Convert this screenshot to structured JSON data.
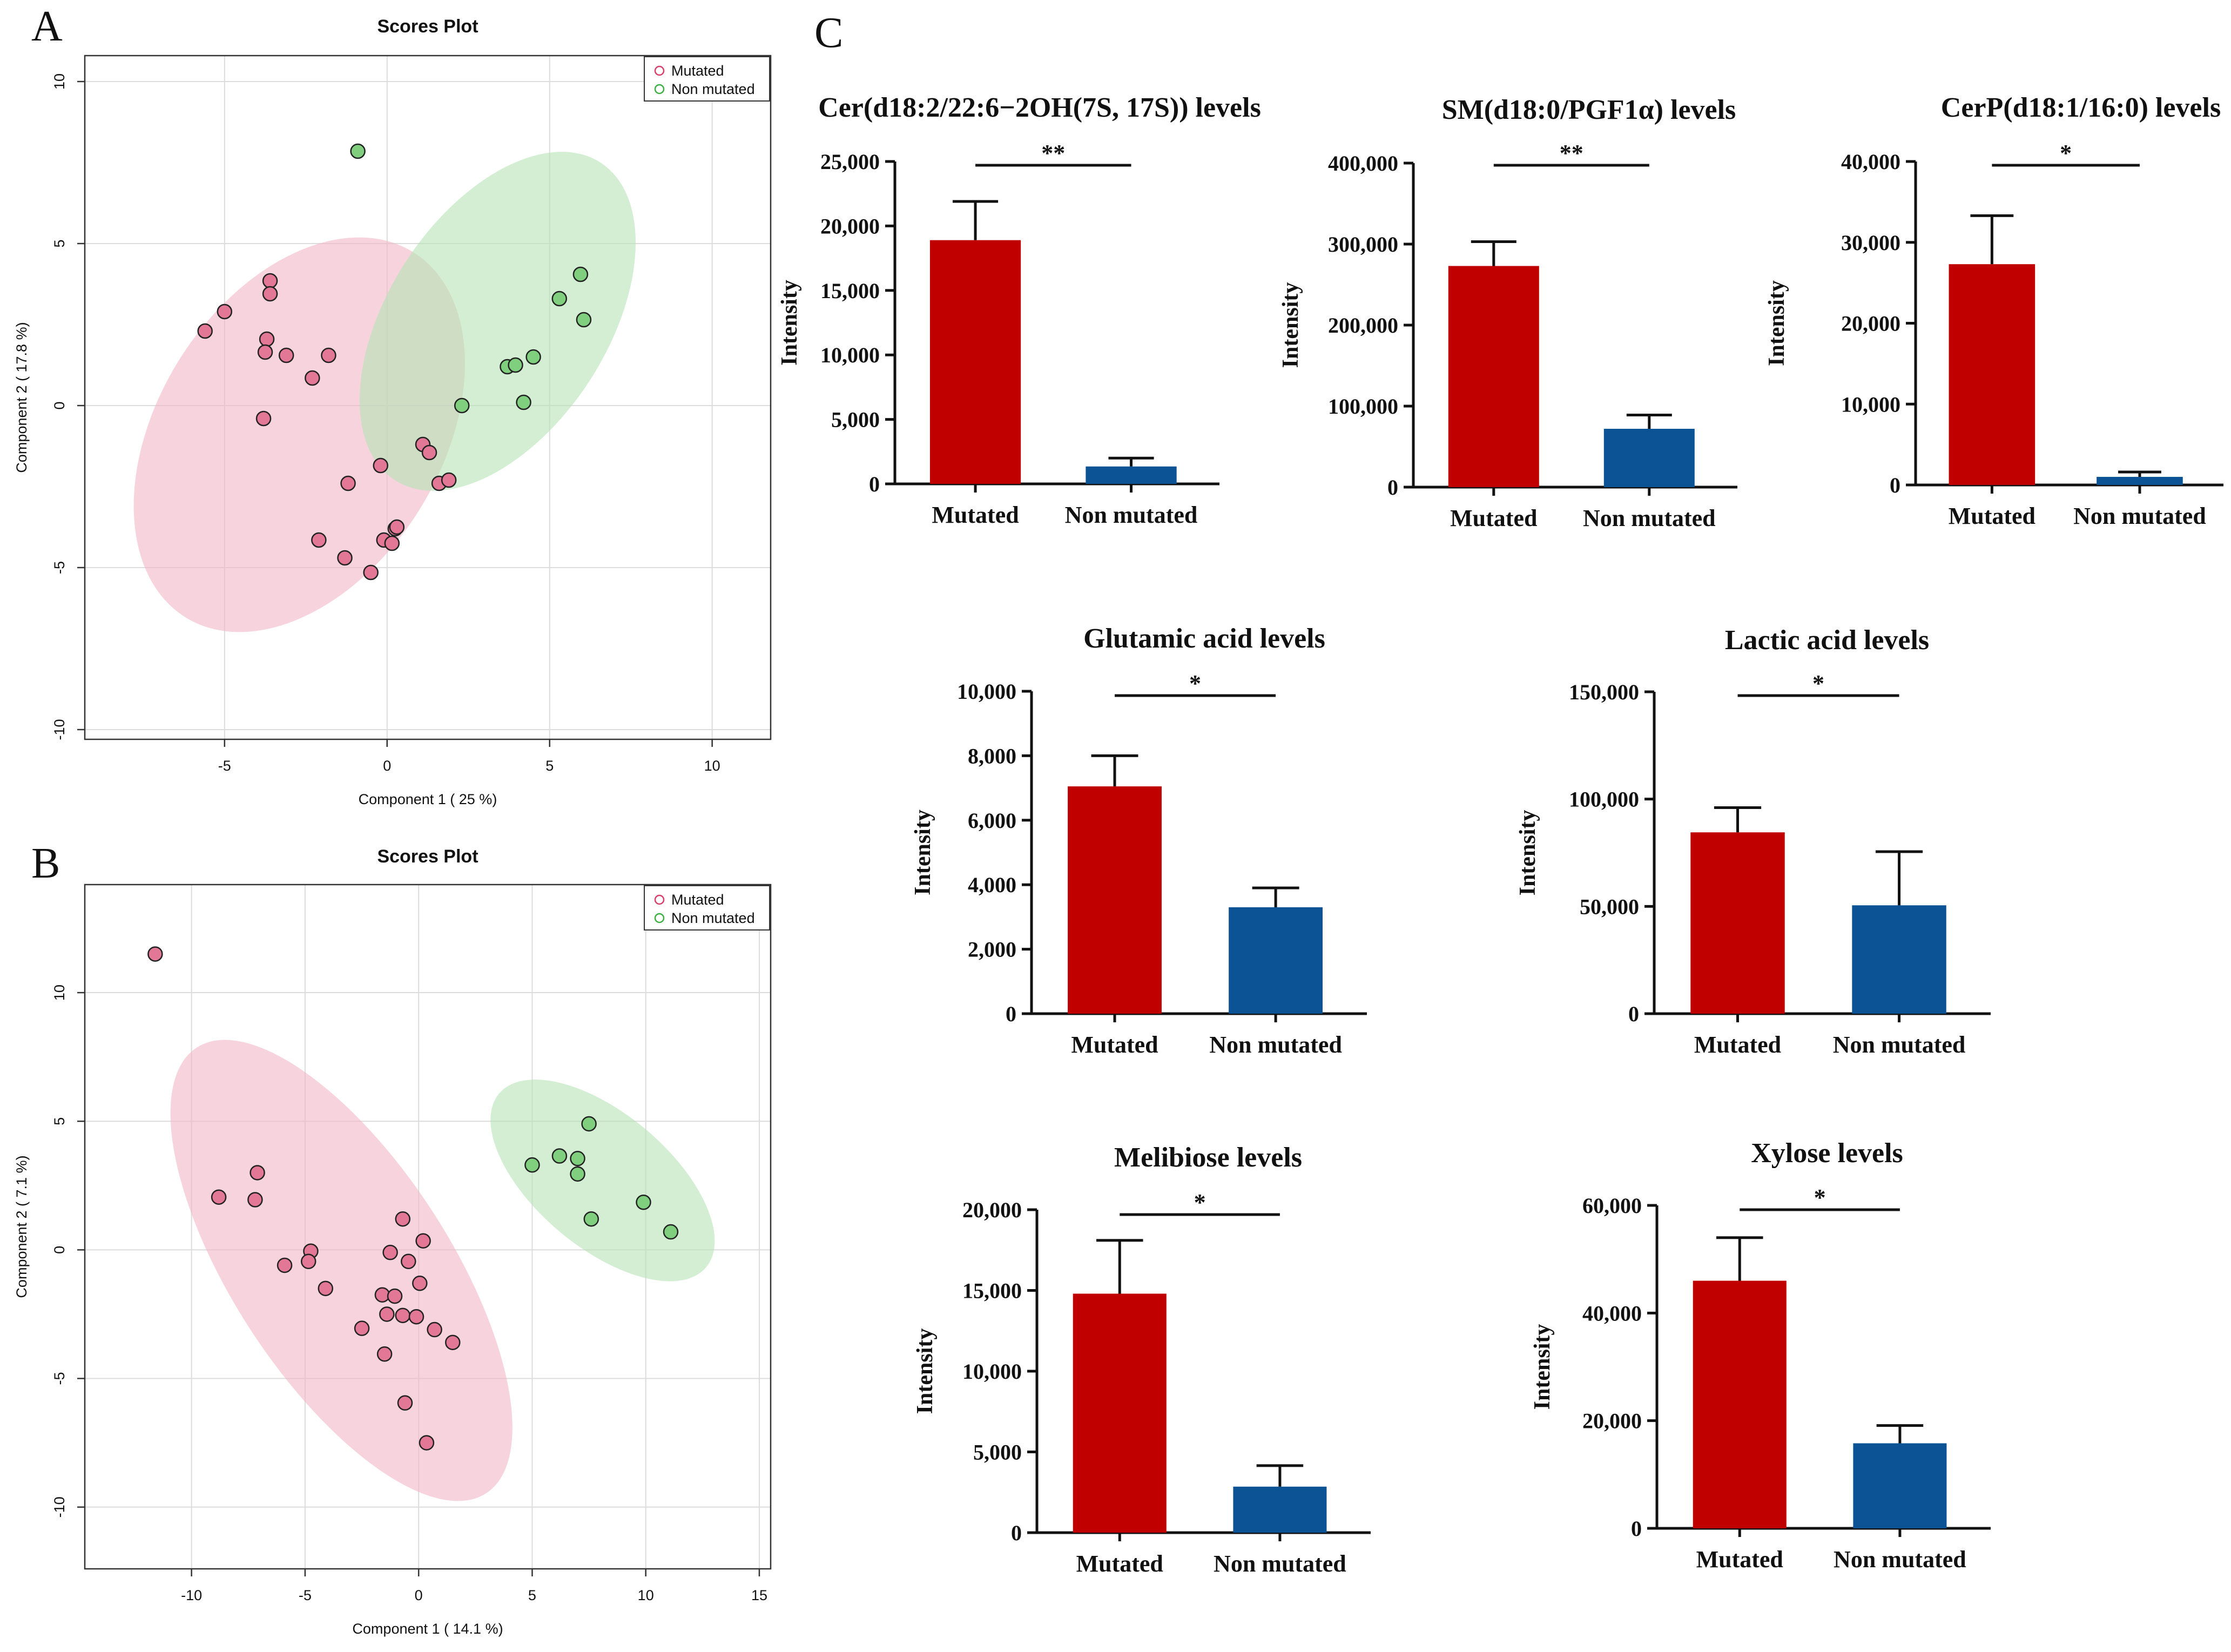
{
  "panel_letters": [
    "A",
    "B",
    "C"
  ],
  "chart_data": [
    {
      "id": "A",
      "type": "scatter",
      "title": "Scores Plot",
      "xlabel": "Component 1 ( 25 %)",
      "ylabel": "Component 2 ( 17.8 %)",
      "xlim": [
        -9.3,
        11.8
      ],
      "ylim": [
        -10.3,
        10.8
      ],
      "xticks": [
        -5,
        0,
        5,
        10
      ],
      "yticks": [
        -10,
        -5,
        0,
        5,
        10
      ],
      "grid": true,
      "legend_position": "top-right",
      "legend": [
        "Mutated",
        "Non mutated"
      ],
      "colors": {
        "Mutated": "#f2b8c6",
        "Non mutated": "#b6e3b6",
        "Mutated_point": "#e27896",
        "Non mutated_point": "#7fcf7f",
        "Mutated_marker": "#d6406a",
        "Non mutated_marker": "#3cb043"
      },
      "ellipses": [
        {
          "group": "Mutated",
          "cx": -2.7,
          "cy": -0.9,
          "rx": 6.62,
          "ry": 4.37,
          "angle_deg": -58
        },
        {
          "group": "Non mutated",
          "cx": 3.4,
          "cy": 2.6,
          "rx": 5.82,
          "ry": 3.38,
          "angle_deg": -57
        }
      ],
      "series": [
        {
          "name": "Mutated",
          "points": [
            [
              -5.6,
              2.3
            ],
            [
              -5.0,
              2.9
            ],
            [
              -3.6,
              3.85
            ],
            [
              -3.6,
              3.45
            ],
            [
              -3.7,
              2.05
            ],
            [
              -3.75,
              1.65
            ],
            [
              -3.1,
              1.55
            ],
            [
              -1.8,
              1.55
            ],
            [
              -2.3,
              0.85
            ],
            [
              -3.8,
              -0.4
            ],
            [
              -0.2,
              -1.85
            ],
            [
              1.1,
              -1.2
            ],
            [
              1.3,
              -1.45
            ],
            [
              1.6,
              -2.4
            ],
            [
              1.9,
              -2.3
            ],
            [
              -1.2,
              -2.4
            ],
            [
              -2.1,
              -4.15
            ],
            [
              -1.3,
              -4.7
            ],
            [
              -0.5,
              -5.15
            ],
            [
              -0.1,
              -4.15
            ],
            [
              0.15,
              -4.25
            ],
            [
              0.25,
              -3.8
            ],
            [
              0.3,
              -3.75
            ]
          ]
        },
        {
          "name": "Non mutated",
          "points": [
            [
              -0.9,
              7.85
            ],
            [
              2.3,
              0.0
            ],
            [
              3.7,
              1.2
            ],
            [
              3.95,
              1.25
            ],
            [
              4.5,
              1.5
            ],
            [
              4.2,
              0.1
            ],
            [
              5.3,
              3.3
            ],
            [
              5.95,
              4.05
            ],
            [
              6.05,
              2.65
            ]
          ]
        }
      ]
    },
    {
      "id": "B",
      "type": "scatter",
      "title": "Scores Plot",
      "xlabel": "Component 1 ( 14.1 %)",
      "ylabel": "Component 2 ( 7.1 %)",
      "xlim": [
        -14.7,
        15.5
      ],
      "ylim": [
        -12.4,
        14.2
      ],
      "xticks": [
        -10,
        -5,
        0,
        5,
        10,
        15
      ],
      "yticks": [
        -10,
        -5,
        0,
        5,
        10
      ],
      "grid": true,
      "legend_position": "top-right",
      "legend": [
        "Mutated",
        "Non mutated"
      ],
      "colors": {
        "Mutated": "#f2b8c6",
        "Non mutated": "#b6e3b6",
        "Mutated_point": "#e27896",
        "Non mutated_point": "#7fcf7f",
        "Mutated_marker": "#d6406a",
        "Non mutated_marker": "#3cb043"
      },
      "ellipses": [
        {
          "group": "Mutated",
          "cx": -3.4,
          "cy": -0.8,
          "rx": 11.7,
          "ry": 4.22,
          "angle_deg": 57
        },
        {
          "group": "Non mutated",
          "cx": 8.1,
          "cy": 2.7,
          "rx": 5.95,
          "ry": 2.6,
          "angle_deg": 40
        }
      ],
      "series": [
        {
          "name": "Mutated",
          "points": [
            [
              -11.6,
              11.5
            ],
            [
              -7.1,
              3.0
            ],
            [
              -7.2,
              1.95
            ],
            [
              -8.8,
              2.05
            ],
            [
              -5.9,
              -0.6
            ],
            [
              -4.75,
              -0.05
            ],
            [
              -4.85,
              -0.45
            ],
            [
              -4.1,
              -1.5
            ],
            [
              -2.5,
              -3.05
            ],
            [
              -1.5,
              -4.05
            ],
            [
              -1.6,
              -1.75
            ],
            [
              -1.4,
              -2.5
            ],
            [
              -1.25,
              -0.1
            ],
            [
              -1.05,
              -1.8
            ],
            [
              -0.7,
              -2.55
            ],
            [
              -0.7,
              1.2
            ],
            [
              -0.45,
              -0.45
            ],
            [
              -0.6,
              -5.95
            ],
            [
              -0.1,
              -2.6
            ],
            [
              0.05,
              -1.3
            ],
            [
              0.2,
              0.35
            ],
            [
              0.35,
              -7.5
            ],
            [
              0.7,
              -3.1
            ],
            [
              1.5,
              -3.6
            ]
          ]
        },
        {
          "name": "Non mutated",
          "points": [
            [
              5.0,
              3.3
            ],
            [
              6.2,
              3.65
            ],
            [
              7.0,
              3.55
            ],
            [
              7.0,
              2.95
            ],
            [
              7.5,
              4.9
            ],
            [
              7.6,
              1.2
            ],
            [
              9.9,
              1.85
            ],
            [
              11.1,
              0.7
            ]
          ]
        }
      ]
    },
    {
      "id": "C1",
      "type": "bar",
      "title": "Cer(d18:2/22:6−2OH(7S, 17S)) levels",
      "ylabel": "Intensity",
      "categories": [
        "Mutated",
        "Non mutated"
      ],
      "values": [
        18900,
        1350
      ],
      "errors": [
        3000,
        650
      ],
      "ylim": [
        0,
        25000
      ],
      "yticks": [
        "0",
        "5,000",
        "10,000",
        "15,000",
        "20,000",
        "25,000"
      ],
      "significance": "**",
      "colors": [
        "#c00000",
        "#0b5394"
      ]
    },
    {
      "id": "C2",
      "type": "bar",
      "title": "SM(d18:0/PGF1α) levels",
      "ylabel": "Intensity",
      "categories": [
        "Mutated",
        "Non mutated"
      ],
      "values": [
        273000,
        72000
      ],
      "errors": [
        30000,
        17000
      ],
      "ylim": [
        0,
        400000
      ],
      "yticks": [
        "0",
        "100,000",
        "200,000",
        "300,000",
        "400,000"
      ],
      "significance": "**",
      "colors": [
        "#c00000",
        "#0b5394"
      ]
    },
    {
      "id": "C3",
      "type": "bar",
      "title": "CerP(d18:1/16:0) levels",
      "ylabel": "Intensity",
      "categories": [
        "Mutated",
        "Non mutated"
      ],
      "values": [
        27300,
        1000
      ],
      "errors": [
        6000,
        600
      ],
      "ylim": [
        0,
        40000
      ],
      "yticks": [
        "0",
        "10,000",
        "20,000",
        "30,000",
        "40,000"
      ],
      "significance": "*",
      "colors": [
        "#c00000",
        "#0b5394"
      ]
    },
    {
      "id": "C4",
      "type": "bar",
      "title": "Glutamic acid levels",
      "ylabel": "Intensity",
      "categories": [
        "Mutated",
        "Non mutated"
      ],
      "values": [
        7050,
        3300
      ],
      "errors": [
        950,
        600
      ],
      "ylim": [
        0,
        10000
      ],
      "yticks": [
        "0",
        "2,000",
        "4,000",
        "6,000",
        "8,000",
        "10,000"
      ],
      "significance": "*",
      "colors": [
        "#c00000",
        "#0b5394"
      ]
    },
    {
      "id": "C5",
      "type": "bar",
      "title": "Lactic acid levels",
      "ylabel": "Intensity",
      "categories": [
        "Mutated",
        "Non mutated"
      ],
      "values": [
        84500,
        50500
      ],
      "errors": [
        11500,
        25000
      ],
      "ylim": [
        0,
        150000
      ],
      "yticks": [
        "0",
        "50,000",
        "100,000",
        "150,000"
      ],
      "significance": "*",
      "colors": [
        "#c00000",
        "#0b5394"
      ]
    },
    {
      "id": "C6",
      "type": "bar",
      "title": "Melibiose levels",
      "ylabel": "Intensity",
      "categories": [
        "Mutated",
        "Non mutated"
      ],
      "values": [
        14800,
        2850
      ],
      "errors": [
        3300,
        1300
      ],
      "ylim": [
        0,
        20000
      ],
      "yticks": [
        "0",
        "5,000",
        "10,000",
        "15,000",
        "20,000"
      ],
      "significance": "*",
      "colors": [
        "#c00000",
        "#0b5394"
      ]
    },
    {
      "id": "C7",
      "type": "bar",
      "title": "Xylose levels",
      "ylabel": "Intensity",
      "categories": [
        "Mutated",
        "Non mutated"
      ],
      "values": [
        46000,
        15800
      ],
      "errors": [
        8000,
        3300
      ],
      "ylim": [
        0,
        60000
      ],
      "yticks": [
        "0",
        "20,000",
        "40,000",
        "60,000"
      ],
      "significance": "*",
      "colors": [
        "#c00000",
        "#0b5394"
      ]
    }
  ]
}
